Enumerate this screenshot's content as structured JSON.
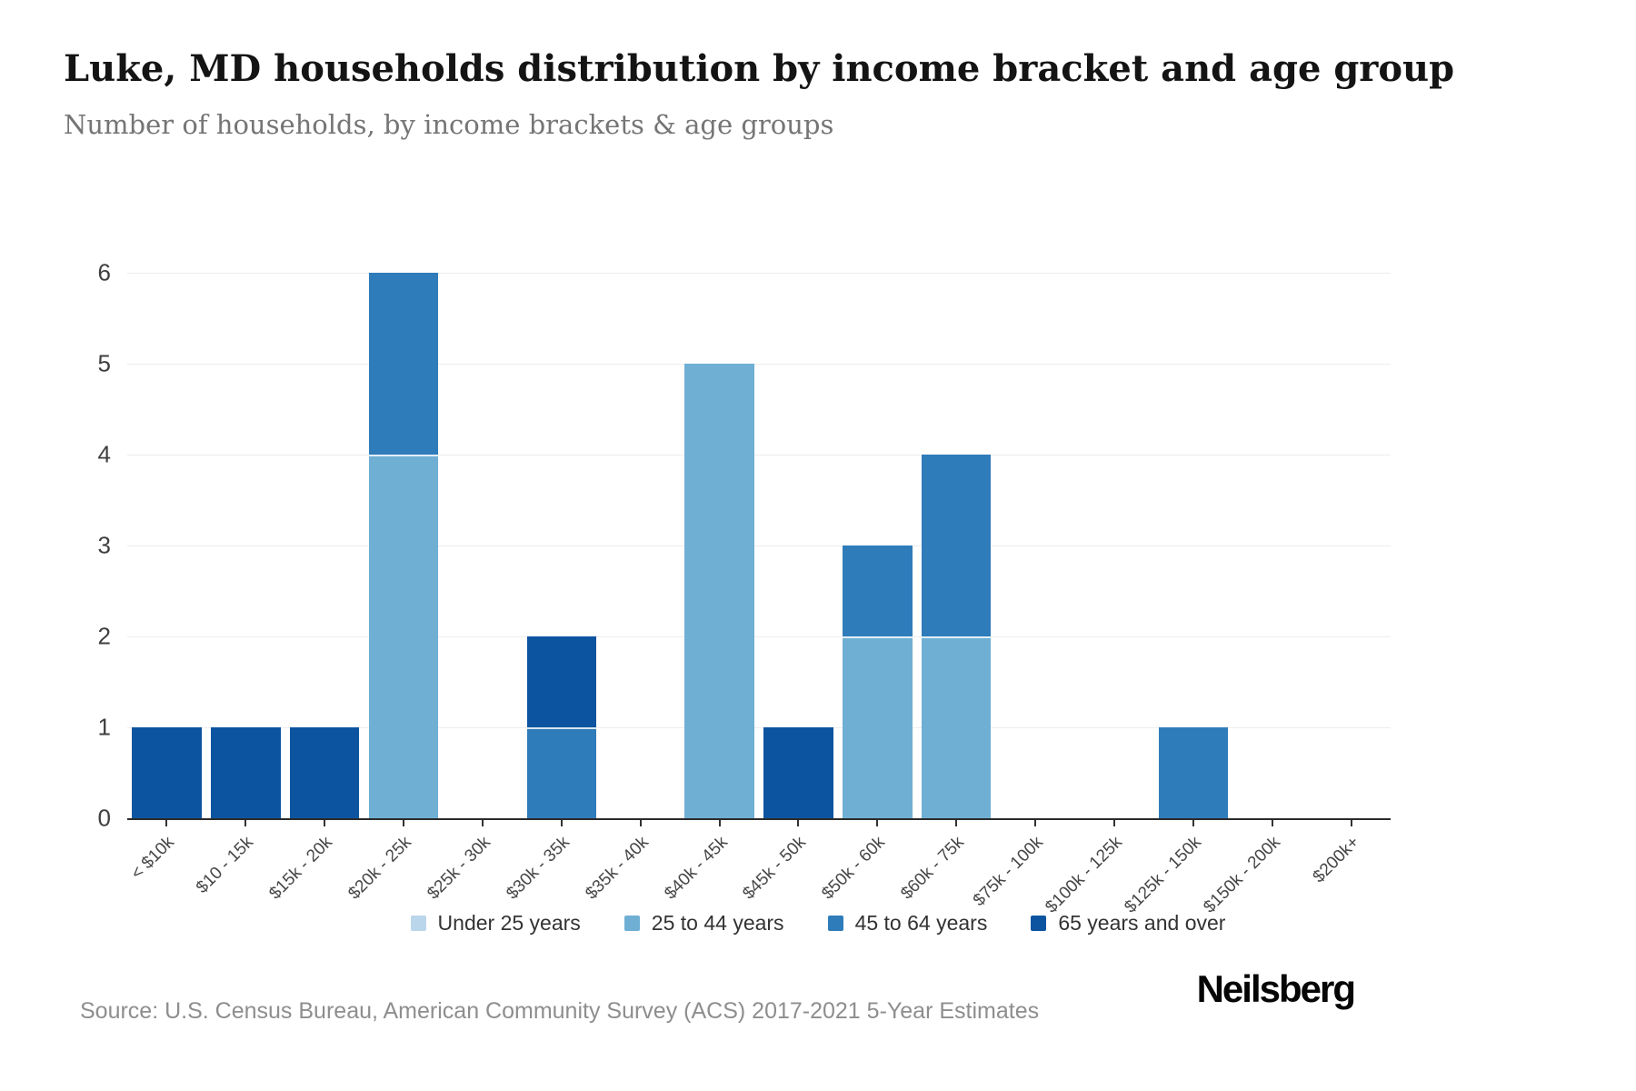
{
  "header": {
    "title": "Luke, MD households distribution by income bracket and age group",
    "subtitle": "Number of households, by income brackets & age groups"
  },
  "footer": {
    "source": "Source: U.S. Census Bureau, American Community Survey (ACS) 2017-2021 5-Year Estimates",
    "brand": "Neilsberg"
  },
  "colors": {
    "under25": "#b9d6ea",
    "age25to44": "#6fafd4",
    "age45to64": "#2f7cba",
    "age65plus": "#0d54a0",
    "gridline": "#ededed",
    "axis_line": "#2b2b2b",
    "axis_text": "#3f3f3f"
  },
  "chart_data": {
    "type": "bar",
    "stacked": true,
    "title": "Luke, MD households distribution by income bracket and age group",
    "subtitle": "Number of households, by income brackets & age groups",
    "xlabel": "",
    "ylabel": "Number of households",
    "ylim": [
      0,
      6
    ],
    "yticks": [
      0,
      1,
      2,
      3,
      4,
      5,
      6
    ],
    "grid": true,
    "legend_position": "bottom",
    "categories": [
      "< $10k",
      "$10 - 15k",
      "$15k - 20k",
      "$20k - 25k",
      "$25k - 30k",
      "$30k - 35k",
      "$35k - 40k",
      "$40k - 45k",
      "$45k - 50k",
      "$50k - 60k",
      "$60k - 75k",
      "$75k - 100k",
      "$100k - 125k",
      "$125k - 150k",
      "$150k - 200k",
      "$200k+"
    ],
    "series": [
      {
        "name": "Under 25 years",
        "color": "#b9d6ea",
        "values": [
          0,
          0,
          0,
          0,
          0,
          0,
          0,
          0,
          0,
          0,
          0,
          0,
          0,
          0,
          0,
          0
        ]
      },
      {
        "name": "25 to 44 years",
        "color": "#6fafd4",
        "values": [
          0,
          0,
          0,
          4,
          0,
          0,
          0,
          5,
          0,
          2,
          2,
          0,
          0,
          0,
          0,
          0
        ]
      },
      {
        "name": "45 to 64 years",
        "color": "#2f7cba",
        "values": [
          0,
          0,
          0,
          2,
          0,
          1,
          0,
          0,
          0,
          1,
          2,
          0,
          0,
          1,
          0,
          0
        ]
      },
      {
        "name": "65 years and over",
        "color": "#0d54a0",
        "values": [
          1,
          1,
          1,
          0,
          0,
          1,
          0,
          0,
          1,
          0,
          0,
          0,
          0,
          0,
          0,
          0
        ]
      }
    ]
  }
}
